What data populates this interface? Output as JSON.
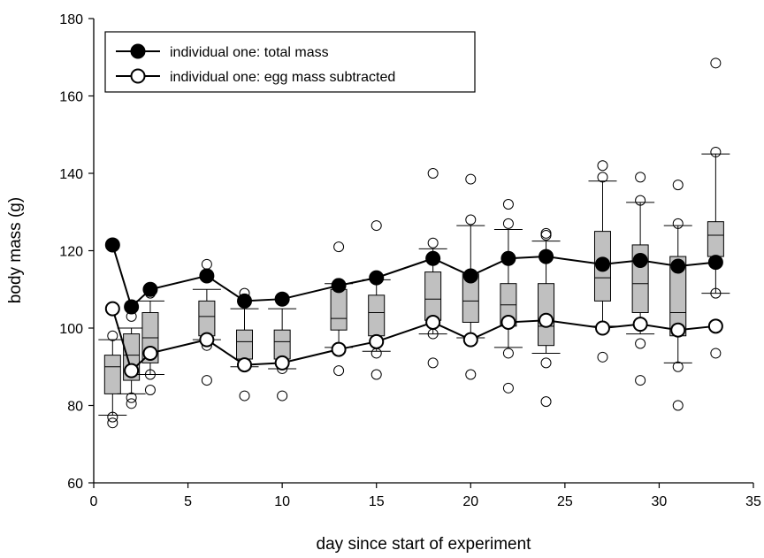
{
  "chart_data": {
    "type": "box+line",
    "xlabel": "day since start of experiment",
    "ylabel": "body mass (g)",
    "xlim": [
      0,
      35
    ],
    "ylim": [
      60,
      180
    ],
    "xticks": [
      0,
      5,
      10,
      15,
      20,
      25,
      30,
      35
    ],
    "yticks": [
      60,
      80,
      100,
      120,
      140,
      160,
      180
    ],
    "grid": false,
    "legend_position": "top-left",
    "boxes": [
      {
        "day": 1,
        "whisker_low": 77.5,
        "q1": 83,
        "median": 90,
        "q3": 93,
        "whisker_high": 97,
        "outliers": [
          75.5,
          77,
          98
        ]
      },
      {
        "day": 2,
        "whisker_low": 83,
        "q1": 86.5,
        "median": 93,
        "q3": 98.5,
        "whisker_high": 100,
        "outliers": [
          80.5,
          82,
          103
        ]
      },
      {
        "day": 3,
        "whisker_low": 88,
        "q1": 91,
        "median": 97.5,
        "q3": 104,
        "whisker_high": 107,
        "outliers": [
          84,
          88,
          109
        ]
      },
      {
        "day": 6,
        "whisker_low": 97,
        "q1": 98,
        "median": 103,
        "q3": 107,
        "whisker_high": 110,
        "outliers": [
          86.5,
          95.5,
          116.5
        ]
      },
      {
        "day": 8,
        "whisker_low": 90,
        "q1": 92,
        "median": 96.5,
        "q3": 99.5,
        "whisker_high": 105,
        "outliers": [
          82.5,
          107.5,
          109
        ]
      },
      {
        "day": 10,
        "whisker_low": 89.5,
        "q1": 92,
        "median": 96.5,
        "q3": 99.5,
        "whisker_high": 105,
        "outliers": [
          82.5,
          89.5
        ]
      },
      {
        "day": 13,
        "whisker_low": 95,
        "q1": 99.5,
        "median": 102.5,
        "q3": 110,
        "whisker_high": 111.5,
        "outliers": [
          89,
          95,
          121
        ]
      },
      {
        "day": 15,
        "whisker_low": 94,
        "q1": 98,
        "median": 104,
        "q3": 108.5,
        "whisker_high": 112.5,
        "outliers": [
          88,
          93.5,
          113.5,
          126.5
        ]
      },
      {
        "day": 18,
        "whisker_low": 98.5,
        "q1": 102,
        "median": 107.5,
        "q3": 114.5,
        "whisker_high": 120.5,
        "outliers": [
          91,
          98.5,
          122,
          140
        ]
      },
      {
        "day": 20,
        "whisker_low": 97.5,
        "q1": 101.5,
        "median": 107,
        "q3": 114,
        "whisker_high": 126.5,
        "outliers": [
          88,
          128,
          138.5
        ]
      },
      {
        "day": 22,
        "whisker_low": 95,
        "q1": 100.5,
        "median": 106,
        "q3": 111.5,
        "whisker_high": 125.5,
        "outliers": [
          84.5,
          93.5,
          127,
          132
        ]
      },
      {
        "day": 24,
        "whisker_low": 93.5,
        "q1": 95.5,
        "median": 100.5,
        "q3": 111.5,
        "whisker_high": 122.5,
        "outliers": [
          81,
          91,
          124,
          124.5
        ]
      },
      {
        "day": 27,
        "whisker_low": 100.5,
        "q1": 107,
        "median": 113,
        "q3": 125,
        "whisker_high": 138,
        "outliers": [
          92.5,
          139,
          142
        ]
      },
      {
        "day": 29,
        "whisker_low": 98.5,
        "q1": 104,
        "median": 111.5,
        "q3": 121.5,
        "whisker_high": 132.5,
        "outliers": [
          86.5,
          96,
          133,
          139
        ]
      },
      {
        "day": 31,
        "whisker_low": 91,
        "q1": 98,
        "median": 104,
        "q3": 118.5,
        "whisker_high": 126.5,
        "outliers": [
          80,
          90,
          127,
          137
        ]
      },
      {
        "day": 33,
        "whisker_low": 109,
        "q1": 118.5,
        "median": 124,
        "q3": 127.5,
        "whisker_high": 145,
        "outliers": [
          93.5,
          109,
          145.5,
          168.5
        ]
      }
    ],
    "series": [
      {
        "name": "individual one: total mass",
        "marker": "filled-circle",
        "x": [
          1,
          2,
          3,
          6,
          8,
          10,
          13,
          15,
          18,
          20,
          22,
          24,
          27,
          29,
          31,
          33
        ],
        "y": [
          121.5,
          105.5,
          110,
          113.5,
          107,
          107.5,
          111,
          113,
          118,
          113.5,
          118,
          118.5,
          116.5,
          117.5,
          116,
          117
        ]
      },
      {
        "name": "individual one: egg mass subtracted",
        "marker": "open-circle",
        "x": [
          1,
          2,
          3,
          6,
          8,
          10,
          13,
          15,
          18,
          20,
          22,
          24,
          27,
          29,
          31,
          33
        ],
        "y": [
          105,
          89,
          93.5,
          97,
          90.5,
          91,
          94.5,
          96.5,
          101.5,
          97,
          101.5,
          102,
          100,
          101,
          99.5,
          100.5
        ]
      }
    ]
  }
}
